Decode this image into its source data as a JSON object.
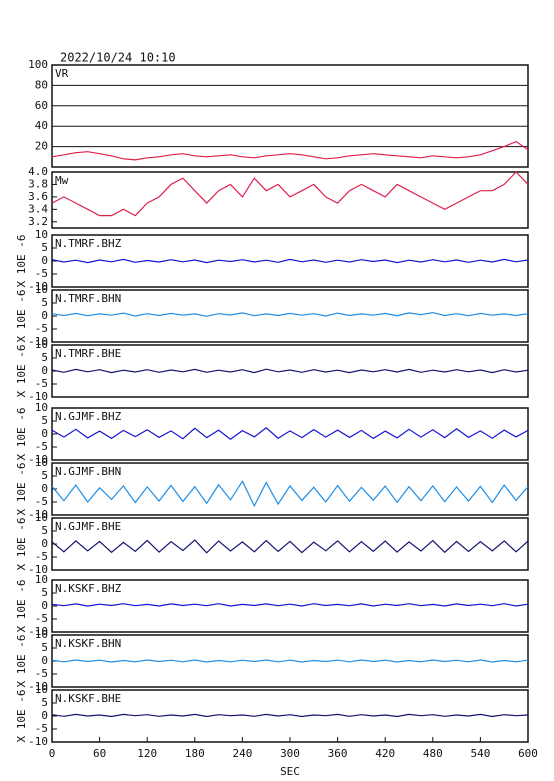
{
  "chart_data": [
    {
      "type": "line",
      "title": "2022/10/24 10:10",
      "x": [
        0,
        15,
        30,
        45,
        60,
        75,
        90,
        105,
        120,
        135,
        150,
        165,
        180,
        195,
        210,
        225,
        240,
        255,
        270,
        285,
        300,
        315,
        330,
        345,
        360,
        375,
        390,
        405,
        420,
        435,
        450,
        465,
        480,
        495,
        510,
        525,
        540,
        555,
        570,
        585,
        600
      ],
      "series": [
        {
          "name": "VR",
          "color": "#e0204a",
          "values": [
            10,
            12,
            14,
            15,
            13,
            11,
            8,
            7,
            9,
            10,
            12,
            13,
            11,
            10,
            11,
            12,
            10,
            9,
            11,
            12,
            13,
            12,
            10,
            8,
            9,
            11,
            12,
            13,
            12,
            11,
            10,
            9,
            11,
            10,
            9,
            10,
            12,
            16,
            20,
            25,
            17
          ]
        }
      ],
      "xlim": [
        0,
        600
      ],
      "ylim": [
        0,
        100
      ],
      "yticks": [
        20,
        40,
        60,
        80,
        100
      ],
      "grid": true
    },
    {
      "type": "line",
      "x": [
        0,
        15,
        30,
        45,
        60,
        75,
        90,
        105,
        120,
        135,
        150,
        165,
        180,
        195,
        210,
        225,
        240,
        255,
        270,
        285,
        300,
        315,
        330,
        345,
        360,
        375,
        390,
        405,
        420,
        435,
        450,
        465,
        480,
        495,
        510,
        525,
        540,
        555,
        570,
        585,
        600
      ],
      "series": [
        {
          "name": "Mw",
          "color": "#e0204a",
          "values": [
            3.5,
            3.6,
            3.5,
            3.4,
            3.3,
            3.3,
            3.4,
            3.3,
            3.5,
            3.6,
            3.8,
            3.9,
            3.7,
            3.5,
            3.7,
            3.8,
            3.6,
            3.9,
            3.7,
            3.8,
            3.6,
            3.7,
            3.8,
            3.6,
            3.5,
            3.7,
            3.8,
            3.7,
            3.6,
            3.8,
            3.7,
            3.6,
            3.5,
            3.4,
            3.5,
            3.6,
            3.7,
            3.7,
            3.8,
            4.0,
            3.8
          ]
        }
      ],
      "xlim": [
        0,
        600
      ],
      "ylim": [
        3.1,
        4.0
      ],
      "yticks": [
        3.2,
        3.4,
        3.6,
        3.8,
        {
          "value": 4,
          "label": "4.0"
        }
      ]
    },
    {
      "type": "line",
      "ylabel": "X 10E -6",
      "x": [
        0,
        15,
        30,
        45,
        60,
        75,
        90,
        105,
        120,
        135,
        150,
        165,
        180,
        195,
        210,
        225,
        240,
        255,
        270,
        285,
        300,
        315,
        330,
        345,
        360,
        375,
        390,
        405,
        420,
        435,
        450,
        465,
        480,
        495,
        510,
        525,
        540,
        555,
        570,
        585,
        600
      ],
      "series": [
        {
          "name": "N.TMRF.BHZ",
          "color": "#1414d2",
          "values": [
            0.5,
            -0.4,
            0.3,
            -0.6,
            0.4,
            -0.3,
            0.6,
            -0.5,
            0.2,
            -0.4,
            0.5,
            -0.3,
            0.4,
            -0.6,
            0.3,
            -0.2,
            0.5,
            -0.4,
            0.3,
            -0.5,
            0.6,
            -0.3,
            0.4,
            -0.5,
            0.3,
            -0.4,
            0.5,
            -0.2,
            0.4,
            -0.6,
            0.3,
            -0.4,
            0.5,
            -0.3,
            0.4,
            -0.5,
            0.3,
            -0.4,
            0.6,
            -0.3,
            0.4
          ]
        }
      ],
      "xlim": [
        0,
        600
      ],
      "ylim": [
        -10,
        10
      ],
      "yticks": [
        -10,
        -5,
        0,
        5,
        10
      ]
    },
    {
      "type": "line",
      "ylabel": "X 10E -6",
      "x": [
        0,
        15,
        30,
        45,
        60,
        75,
        90,
        105,
        120,
        135,
        150,
        165,
        180,
        195,
        210,
        225,
        240,
        255,
        270,
        285,
        300,
        315,
        330,
        345,
        360,
        375,
        390,
        405,
        420,
        435,
        450,
        465,
        480,
        495,
        510,
        525,
        540,
        555,
        570,
        585,
        600
      ],
      "series": [
        {
          "name": "N.TMRF.BHN",
          "color": "#1e8ee6",
          "values": [
            0.9,
            0.2,
            1.0,
            0.1,
            0.8,
            0.3,
            1.1,
            0.0,
            0.9,
            0.2,
            1.0,
            0.3,
            0.8,
            -0.1,
            0.9,
            0.4,
            1.2,
            0.1,
            0.8,
            0.2,
            1.0,
            0.3,
            0.9,
            0.0,
            1.1,
            0.2,
            0.8,
            0.3,
            1.0,
            0.1,
            1.2,
            0.5,
            1.3,
            0.2,
            0.9,
            0.1,
            1.0,
            0.3,
            0.8,
            0.2,
            0.9
          ]
        }
      ],
      "xlim": [
        0,
        600
      ],
      "ylim": [
        -10,
        10
      ],
      "yticks": [
        -10,
        -5,
        0,
        5,
        10
      ]
    },
    {
      "type": "line",
      "ylabel": "X 10E -6",
      "x": [
        0,
        15,
        30,
        45,
        60,
        75,
        90,
        105,
        120,
        135,
        150,
        165,
        180,
        195,
        210,
        225,
        240,
        255,
        270,
        285,
        300,
        315,
        330,
        345,
        360,
        375,
        390,
        405,
        420,
        435,
        450,
        465,
        480,
        495,
        510,
        525,
        540,
        555,
        570,
        585,
        600
      ],
      "series": [
        {
          "name": "N.TMRF.BHE",
          "color": "#141470",
          "values": [
            0.4,
            -0.5,
            0.6,
            -0.3,
            0.5,
            -0.6,
            0.3,
            -0.4,
            0.5,
            -0.5,
            0.4,
            -0.3,
            0.6,
            -0.5,
            0.3,
            -0.4,
            0.5,
            -0.6,
            0.7,
            -0.3,
            0.4,
            -0.5,
            0.5,
            -0.4,
            0.3,
            -0.6,
            0.4,
            -0.3,
            0.5,
            -0.4,
            0.6,
            -0.5,
            0.3,
            -0.4,
            0.5,
            -0.3,
            0.4,
            -0.6,
            0.5,
            -0.4,
            0.3
          ]
        }
      ],
      "xlim": [
        0,
        600
      ],
      "ylim": [
        -10,
        10
      ],
      "yticks": [
        -10,
        -5,
        0,
        5,
        10
      ]
    },
    {
      "type": "line",
      "ylabel": "X 10E -6",
      "x": [
        0,
        15,
        30,
        45,
        60,
        75,
        90,
        105,
        120,
        135,
        150,
        165,
        180,
        195,
        210,
        225,
        240,
        255,
        270,
        285,
        300,
        315,
        330,
        345,
        360,
        375,
        390,
        405,
        420,
        435,
        450,
        465,
        480,
        495,
        510,
        525,
        540,
        555,
        570,
        585,
        600
      ],
      "series": [
        {
          "name": "N.GJMF.BHZ",
          "color": "#1414d2",
          "values": [
            1.5,
            -1.2,
            1.8,
            -1.5,
            1.1,
            -1.7,
            1.4,
            -1.0,
            1.6,
            -1.3,
            1.2,
            -1.8,
            2.2,
            -1.4,
            1.5,
            -2.0,
            1.3,
            -1.1,
            2.4,
            -1.6,
            1.2,
            -1.4,
            1.7,
            -1.2,
            1.5,
            -1.3,
            1.4,
            -1.7,
            1.1,
            -1.5,
            1.8,
            -1.2,
            1.6,
            -1.4,
            2.0,
            -1.3,
            1.2,
            -1.6,
            1.5,
            -1.1,
            1.4
          ]
        }
      ],
      "xlim": [
        0,
        600
      ],
      "ylim": [
        -10,
        10
      ],
      "yticks": [
        -10,
        -5,
        0,
        5,
        10
      ]
    },
    {
      "type": "line",
      "ylabel": "X 10E -6",
      "x": [
        0,
        15,
        30,
        45,
        60,
        75,
        90,
        105,
        120,
        135,
        150,
        165,
        180,
        195,
        210,
        225,
        240,
        255,
        270,
        285,
        300,
        315,
        330,
        345,
        360,
        375,
        390,
        405,
        420,
        435,
        450,
        465,
        480,
        495,
        510,
        525,
        540,
        555,
        570,
        585,
        600
      ],
      "series": [
        {
          "name": "N.GJMF.BHN",
          "color": "#1e8ee6",
          "values": [
            1.0,
            -4.5,
            1.5,
            -5.0,
            0.5,
            -4.0,
            1.2,
            -5.2,
            0.8,
            -4.6,
            1.4,
            -4.8,
            0.9,
            -5.5,
            1.6,
            -4.2,
            3.0,
            -6.5,
            2.5,
            -5.8,
            1.2,
            -4.4,
            0.7,
            -5.0,
            1.3,
            -4.7,
            0.6,
            -4.3,
            1.1,
            -5.1,
            0.9,
            -4.5,
            1.2,
            -4.9,
            0.8,
            -4.6,
            1.0,
            -5.2,
            1.5,
            -4.4,
            0.9
          ]
        }
      ],
      "xlim": [
        0,
        600
      ],
      "ylim": [
        -10,
        10
      ],
      "yticks": [
        -10,
        -5,
        0,
        5,
        10
      ]
    },
    {
      "type": "line",
      "ylabel": "X 10E -6",
      "x": [
        0,
        15,
        30,
        45,
        60,
        75,
        90,
        105,
        120,
        135,
        150,
        165,
        180,
        195,
        210,
        225,
        240,
        255,
        270,
        285,
        300,
        315,
        330,
        345,
        360,
        375,
        390,
        405,
        420,
        435,
        450,
        465,
        480,
        495,
        510,
        525,
        540,
        555,
        570,
        585,
        600
      ],
      "series": [
        {
          "name": "N.GJMF.BHE",
          "color": "#141470",
          "values": [
            0.8,
            -3.0,
            1.2,
            -2.6,
            1.0,
            -3.2,
            0.6,
            -2.8,
            1.4,
            -3.1,
            0.9,
            -2.5,
            1.5,
            -3.4,
            1.1,
            -2.7,
            0.8,
            -3.0,
            1.3,
            -2.9,
            1.0,
            -3.3,
            0.7,
            -2.6,
            1.2,
            -3.0,
            0.9,
            -2.8,
            1.1,
            -3.1,
            0.8,
            -2.7,
            1.3,
            -3.2,
            1.0,
            -2.9,
            0.9,
            -2.6,
            1.2,
            -3.0,
            1.1
          ]
        }
      ],
      "xlim": [
        0,
        600
      ],
      "ylim": [
        -10,
        10
      ],
      "yticks": [
        -10,
        -5,
        0,
        5,
        10
      ]
    },
    {
      "type": "line",
      "ylabel": "X 10E -6",
      "x": [
        0,
        15,
        30,
        45,
        60,
        75,
        90,
        105,
        120,
        135,
        150,
        165,
        180,
        195,
        210,
        225,
        240,
        255,
        270,
        285,
        300,
        315,
        330,
        345,
        360,
        375,
        390,
        405,
        420,
        435,
        450,
        465,
        480,
        495,
        510,
        525,
        540,
        555,
        570,
        585,
        600
      ],
      "series": [
        {
          "name": "N.KSKF.BHZ",
          "color": "#1414d2",
          "values": [
            0.6,
            0.1,
            0.8,
            0.0,
            0.7,
            0.2,
            0.9,
            0.1,
            0.6,
            0.0,
            0.8,
            0.2,
            0.7,
            0.1,
            0.9,
            0.0,
            0.6,
            0.2,
            0.8,
            0.1,
            0.7,
            0.0,
            0.9,
            0.2,
            0.6,
            0.1,
            0.8,
            0.0,
            0.7,
            0.2,
            0.9,
            0.1,
            0.6,
            0.0,
            0.8,
            0.2,
            0.7,
            0.1,
            0.9,
            0.0,
            0.7
          ]
        }
      ],
      "xlim": [
        0,
        600
      ],
      "ylim": [
        -10,
        10
      ],
      "yticks": [
        -10,
        -5,
        0,
        5,
        10
      ]
    },
    {
      "type": "line",
      "ylabel": "X 10E -6",
      "x": [
        0,
        15,
        30,
        45,
        60,
        75,
        90,
        105,
        120,
        135,
        150,
        165,
        180,
        195,
        210,
        225,
        240,
        255,
        270,
        285,
        300,
        315,
        330,
        345,
        360,
        375,
        390,
        405,
        420,
        435,
        450,
        465,
        480,
        495,
        510,
        525,
        540,
        555,
        570,
        585,
        600
      ],
      "series": [
        {
          "name": "N.KSKF.BHN",
          "color": "#1e8ee6",
          "values": [
            0.3,
            -0.3,
            0.4,
            -0.2,
            0.3,
            -0.4,
            0.2,
            -0.3,
            0.4,
            -0.2,
            0.3,
            -0.3,
            0.4,
            -0.4,
            0.2,
            -0.3,
            0.3,
            -0.2,
            0.4,
            -0.3,
            0.3,
            -0.4,
            0.2,
            -0.2,
            0.3,
            -0.3,
            0.4,
            -0.2,
            0.3,
            -0.4,
            0.2,
            -0.3,
            0.4,
            -0.2,
            0.3,
            -0.3,
            0.4,
            -0.4,
            0.2,
            -0.3,
            0.3
          ]
        }
      ],
      "xlim": [
        0,
        600
      ],
      "ylim": [
        -10,
        10
      ],
      "yticks": [
        -10,
        -5,
        0,
        5,
        10
      ]
    },
    {
      "type": "line",
      "ylabel": "X 10E -6",
      "xlabel": "SEC",
      "x": [
        0,
        15,
        30,
        45,
        60,
        75,
        90,
        105,
        120,
        135,
        150,
        165,
        180,
        195,
        210,
        225,
        240,
        255,
        270,
        285,
        300,
        315,
        330,
        345,
        360,
        375,
        390,
        405,
        420,
        435,
        450,
        465,
        480,
        495,
        510,
        525,
        540,
        555,
        570,
        585,
        600
      ],
      "series": [
        {
          "name": "N.KSKF.BHE",
          "color": "#141470",
          "values": [
            0.5,
            -0.1,
            0.6,
            0.0,
            0.4,
            -0.2,
            0.6,
            0.1,
            0.5,
            -0.1,
            0.4,
            0.0,
            0.6,
            -0.2,
            0.5,
            0.1,
            0.4,
            -0.1,
            0.6,
            0.0,
            0.5,
            -0.2,
            0.4,
            0.1,
            0.6,
            -0.1,
            0.5,
            0.0,
            0.4,
            -0.2,
            0.6,
            0.1,
            0.5,
            -0.1,
            0.4,
            0.0,
            0.6,
            -0.2,
            0.5,
            0.1,
            0.4
          ]
        }
      ],
      "xlim": [
        0,
        600
      ],
      "ylim": [
        -10,
        10
      ],
      "yticks": [
        -10,
        -5,
        0,
        5,
        10
      ],
      "xticks": [
        0,
        60,
        120,
        180,
        240,
        300,
        360,
        420,
        480,
        540,
        600
      ]
    }
  ]
}
